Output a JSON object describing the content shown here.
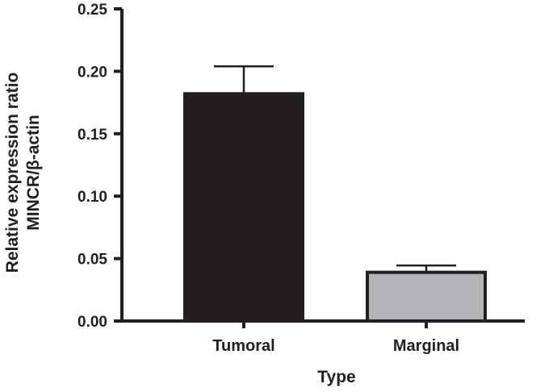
{
  "chart_data": {
    "type": "bar",
    "categories": [
      "Tumoral",
      "Marginal"
    ],
    "values": [
      0.182,
      0.039
    ],
    "errors": [
      0.022,
      0.0055
    ],
    "colors": [
      "#231f20",
      "#b1b3b6"
    ],
    "xlabel": "Type",
    "ylabel_lines": [
      "Relative expression ratio",
      "MINCR/β-actin"
    ],
    "ylim": [
      0,
      0.25
    ],
    "yticks": [
      "0.00",
      "0.05",
      "0.10",
      "0.15",
      "0.20",
      "0.25"
    ],
    "grid": false
  }
}
